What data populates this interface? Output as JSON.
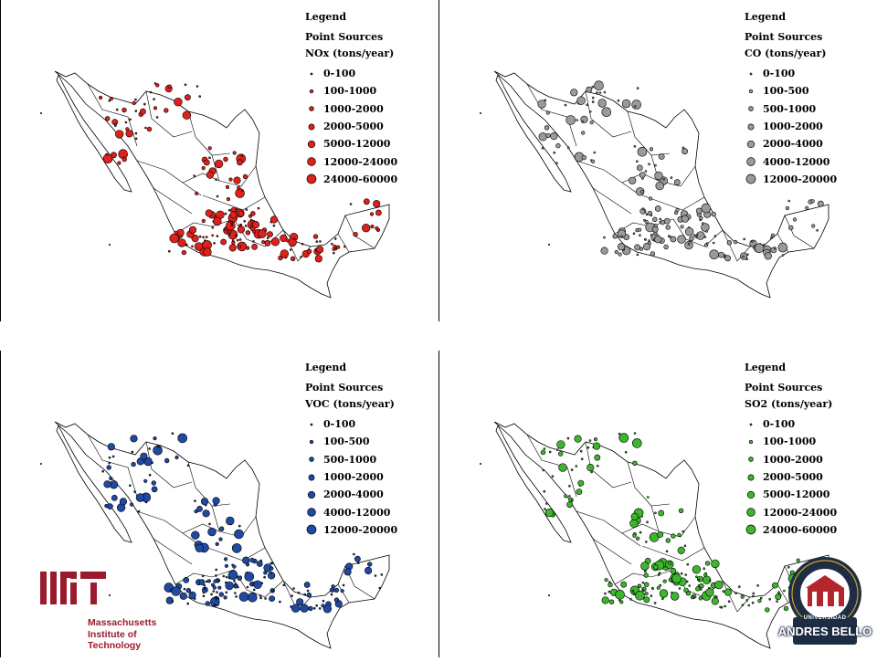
{
  "panels": [
    {
      "id": "nox",
      "legend_title": "Legend",
      "legend_subtitle": "Point Sources",
      "legend_heading": "NOx (tons/year)",
      "color": "#e0201c",
      "classes": [
        "0-100",
        "100-1000",
        "1000-2000",
        "2000-5000",
        "5000-12000",
        "12000-24000",
        "24000-60000"
      ]
    },
    {
      "id": "co",
      "legend_title": "Legend",
      "legend_subtitle": "Point Sources",
      "legend_heading": "CO (tons/year)",
      "color": "#9a9a9a",
      "classes": [
        "0-100",
        "100-500",
        "500-1000",
        "1000-2000",
        "2000-4000",
        "4000-12000",
        "12000-20000"
      ]
    },
    {
      "id": "voc",
      "legend_title": "Legend",
      "legend_subtitle": "Point Sources",
      "legend_heading": "VOC (tons/year)",
      "color": "#1f4aa3",
      "classes": [
        "0-100",
        "100-500",
        "500-1000",
        "1000-2000",
        "2000-4000",
        "4000-12000",
        "12000-20000"
      ]
    },
    {
      "id": "so2",
      "legend_title": "Legend",
      "legend_subtitle": "Point Sources",
      "legend_heading": "SO2 (tons/year)",
      "color": "#3db52c",
      "classes": [
        "0-100",
        "100-1000",
        "1000-2000",
        "2000-5000",
        "5000-12000",
        "12000-24000",
        "24000-60000"
      ]
    }
  ],
  "logos": {
    "mit": {
      "line1": "Massachusetts",
      "line2": "Institute of",
      "line3": "Technology",
      "color": "#9b1b2e"
    },
    "unab": {
      "small": "UNIVERSIDAD",
      "name": "ANDRES BELLO",
      "color": "#1f2d44"
    }
  }
}
